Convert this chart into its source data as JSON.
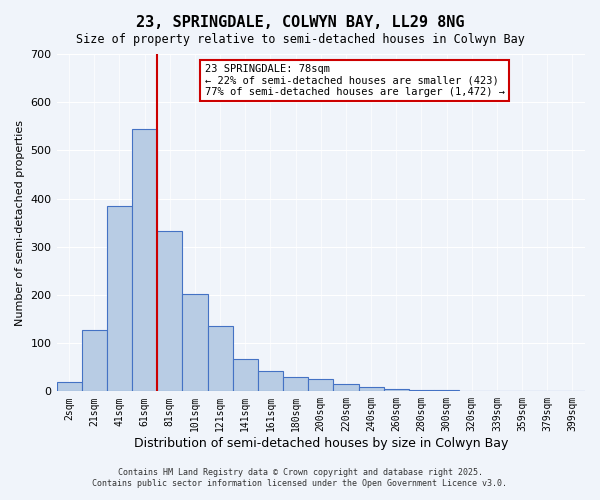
{
  "title": "23, SPRINGDALE, COLWYN BAY, LL29 8NG",
  "subtitle": "Size of property relative to semi-detached houses in Colwyn Bay",
  "xlabel": "Distribution of semi-detached houses by size in Colwyn Bay",
  "ylabel": "Number of semi-detached properties",
  "bar_labels": [
    "2sqm",
    "21sqm",
    "41sqm",
    "61sqm",
    "81sqm",
    "101sqm",
    "121sqm",
    "141sqm",
    "161sqm",
    "180sqm",
    "200sqm",
    "220sqm",
    "240sqm",
    "260sqm",
    "280sqm",
    "300sqm",
    "320sqm",
    "339sqm",
    "359sqm",
    "379sqm",
    "399sqm"
  ],
  "bar_values": [
    20,
    128,
    385,
    545,
    333,
    203,
    135,
    68,
    43,
    29,
    25,
    15,
    8,
    5,
    3,
    3,
    0,
    0,
    0,
    0,
    0
  ],
  "bar_color": "#b8cce4",
  "bar_edge_color": "#4472c4",
  "bar_edge_width": 0.8,
  "vline_x": 4,
  "vline_color": "#cc0000",
  "ylim": [
    0,
    700
  ],
  "yticks": [
    0,
    100,
    200,
    300,
    400,
    500,
    600,
    700
  ],
  "annotation_title": "23 SPRINGDALE: 78sqm",
  "annotation_line1": "← 22% of semi-detached houses are smaller (423)",
  "annotation_line2": "77% of semi-detached houses are larger (1,472) →",
  "annotation_box_color": "#ffffff",
  "annotation_box_edge": "#cc0000",
  "bg_color": "#f0f4fa",
  "grid_color": "#ffffff",
  "footer1": "Contains HM Land Registry data © Crown copyright and database right 2025.",
  "footer2": "Contains public sector information licensed under the Open Government Licence v3.0."
}
